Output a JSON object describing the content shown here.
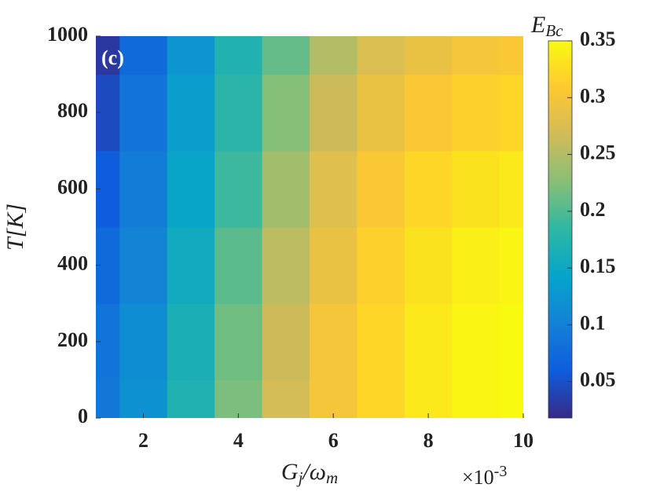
{
  "chart_data": {
    "type": "heatmap",
    "annotation": "(c)",
    "xlabel": [
      "G",
      "j",
      "/ω",
      "m"
    ],
    "ylabel": "T[K]",
    "x_multiplier": {
      "base": "×10",
      "exponent": "-3"
    },
    "colorbar_label": [
      "E",
      "Bc"
    ],
    "colormap": "parula",
    "x": [
      1,
      2,
      3,
      4,
      5,
      6,
      7,
      8,
      9,
      10
    ],
    "y": [
      0,
      200,
      400,
      600,
      800,
      1000
    ],
    "z": [
      [
        0.09,
        0.12,
        0.17,
        0.22,
        0.27,
        0.3,
        0.32,
        0.335,
        0.345,
        0.35
      ],
      [
        0.085,
        0.115,
        0.165,
        0.215,
        0.265,
        0.3,
        0.32,
        0.335,
        0.345,
        0.35
      ],
      [
        0.075,
        0.105,
        0.155,
        0.205,
        0.255,
        0.29,
        0.315,
        0.33,
        0.34,
        0.345
      ],
      [
        0.06,
        0.095,
        0.145,
        0.19,
        0.24,
        0.28,
        0.305,
        0.32,
        0.33,
        0.335
      ],
      [
        0.045,
        0.085,
        0.135,
        0.18,
        0.225,
        0.265,
        0.29,
        0.305,
        0.315,
        0.32
      ],
      [
        0.03,
        0.075,
        0.125,
        0.17,
        0.21,
        0.25,
        0.275,
        0.29,
        0.3,
        0.305
      ]
    ],
    "xlim": [
      1,
      10
    ],
    "xticks": [
      2,
      4,
      6,
      8,
      10
    ],
    "ylim": [
      0,
      1000
    ],
    "yticks": [
      0,
      200,
      400,
      600,
      800,
      1000
    ],
    "clim": [
      0.018,
      0.35
    ],
    "cticks": [
      0.05,
      0.1,
      0.15,
      0.2,
      0.25,
      0.3,
      0.35
    ]
  }
}
